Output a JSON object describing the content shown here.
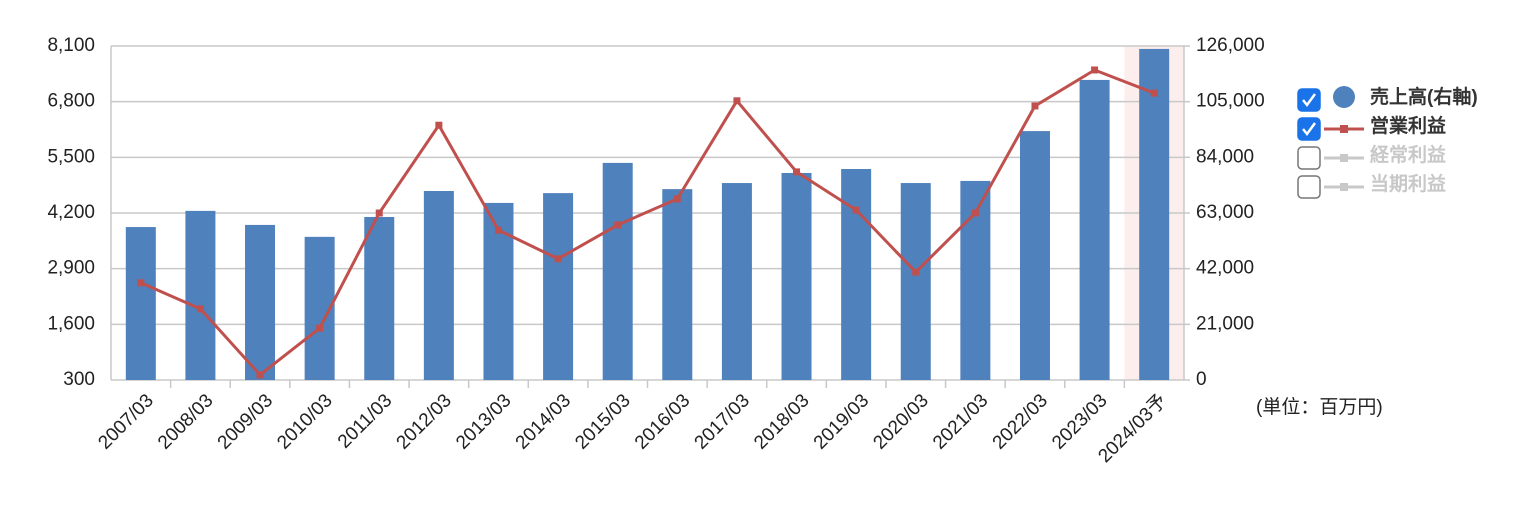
{
  "chart_data": {
    "type": "bar-line",
    "categories": [
      "2007/03",
      "2008/03",
      "2009/03",
      "2010/03",
      "2011/03",
      "2012/03",
      "2013/03",
      "2014/03",
      "2015/03",
      "2016/03",
      "2017/03",
      "2018/03",
      "2019/03",
      "2020/03",
      "2021/03",
      "2022/03",
      "2023/03",
      "2024/03予"
    ],
    "highlight": "2024/03予",
    "ylim": [
      300,
      8100
    ],
    "yticks": [
      {
        "value": 300,
        "label": "300"
      },
      {
        "value": 1600,
        "label": "1,600"
      },
      {
        "value": 2900,
        "label": "2,900"
      },
      {
        "value": 4200,
        "label": "4,200"
      },
      {
        "value": 5500,
        "label": "5,500"
      },
      {
        "value": 6800,
        "label": "6,800"
      },
      {
        "value": 8100,
        "label": "8,100"
      }
    ],
    "y2lim": [
      0,
      126000
    ],
    "y2ticks": [
      0,
      {
        "value": 21000,
        "label": "21,000"
      },
      {
        "value": 42000,
        "label": "42,000"
      },
      {
        "value": 63000,
        "label": "63,000"
      },
      {
        "value": 84000,
        "label": "84,000"
      },
      {
        "value": 105000,
        "label": "105,000"
      },
      {
        "value": 126000,
        "label": "126,000"
      }
    ],
    "grid": true,
    "unit_note": "(単位：百万円)",
    "series": [
      {
        "name": "売上高(右軸)",
        "type": "bar",
        "axis": "y2",
        "color": "#4f81bd",
        "visible": true,
        "values": [
          57700,
          63800,
          58500,
          54000,
          61500,
          71300,
          66800,
          70500,
          81900,
          72000,
          74300,
          78100,
          79600,
          74300,
          75100,
          93900,
          113200,
          124900
        ]
      },
      {
        "name": "営業利益",
        "type": "line",
        "axis": "y",
        "color": "#c0504d",
        "visible": true,
        "values": [
          2570,
          1960,
          420,
          1510,
          4200,
          6250,
          3800,
          3130,
          3920,
          4530,
          6820,
          5160,
          4270,
          2820,
          4200,
          6700,
          7540,
          7000
        ]
      },
      {
        "name": "経常利益",
        "type": "line",
        "axis": "y",
        "color": "#c8c8c8",
        "visible": false,
        "values": [
          null,
          null,
          null,
          null,
          null,
          null,
          null,
          null,
          null,
          null,
          null,
          null,
          null,
          null,
          null,
          null,
          null,
          null
        ]
      },
      {
        "name": "当期利益",
        "type": "line",
        "axis": "y",
        "color": "#c8c8c8",
        "visible": false,
        "values": [
          null,
          null,
          null,
          null,
          null,
          null,
          null,
          null,
          null,
          null,
          null,
          null,
          null,
          null,
          null,
          null,
          null,
          null
        ]
      }
    ]
  }
}
